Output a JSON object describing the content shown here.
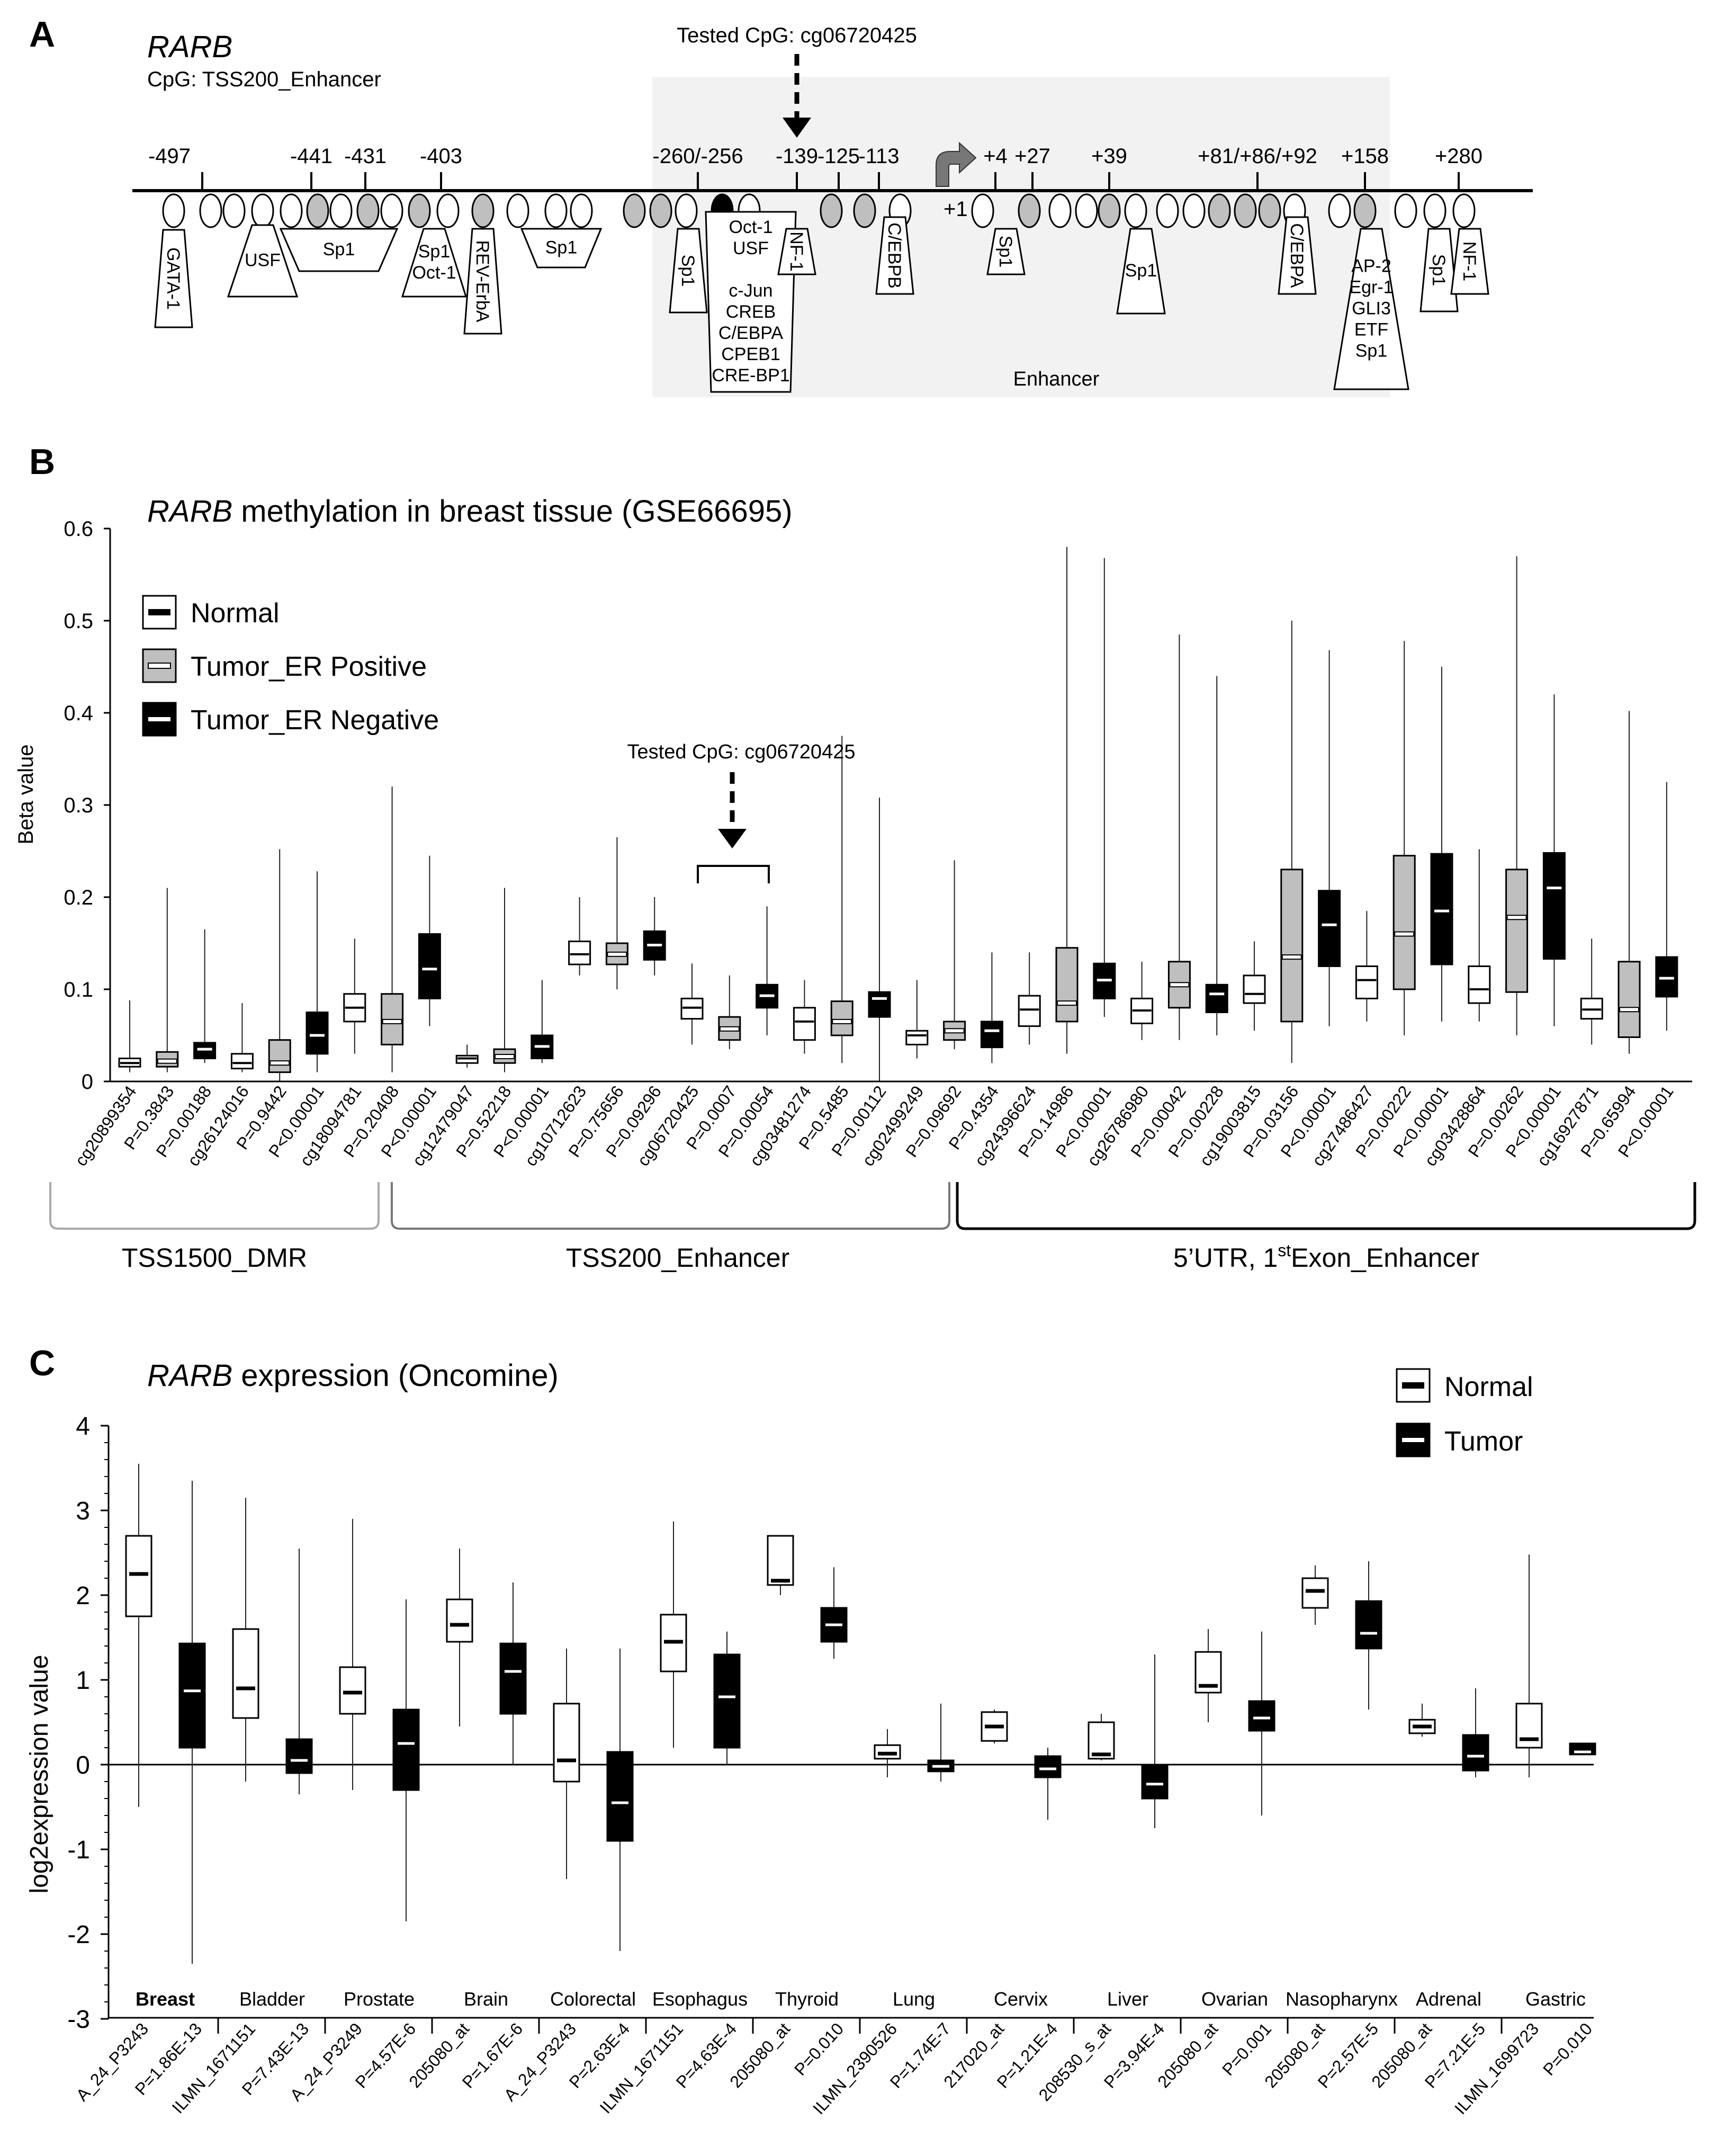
{
  "colors": {
    "normal": "#ffffff",
    "er_pos": "#bfbfbf",
    "er_neg": "#000000",
    "enhancer_bg": "#f2f2f2",
    "site_gray": "#bfbfbf",
    "site_black": "#000000"
  },
  "panel_a": {
    "letter": "A",
    "gene": "RARB",
    "cpg_label": "CpG: TSS200_Enhancer",
    "tested_label": "Tested CpG: cg06720425",
    "tss_label": "+1",
    "enhancer_label": "Enhancer",
    "positions": [
      "-497",
      "-441",
      "-431",
      "-403",
      "-260/-256",
      "-139",
      "-125",
      "-113",
      "+4",
      "+27",
      "+39",
      "+81/+86/+92",
      "+158",
      "+280"
    ],
    "sites": [
      "w",
      "w",
      "w",
      "w",
      "w",
      "g",
      "w",
      "g",
      "w",
      "g",
      "w",
      "g",
      "w",
      "w",
      "w",
      "g",
      "g",
      "w",
      "b",
      "w",
      "g",
      "g",
      "w",
      "w",
      "g",
      "w",
      "w",
      "g",
      "w",
      "w",
      "w",
      "g",
      "g",
      "g",
      "w",
      "w",
      "g",
      "w",
      "w",
      "w"
    ],
    "factors": [
      {
        "lines": [
          "GATA-1"
        ],
        "rot": true
      },
      {
        "lines": [
          "USF"
        ],
        "rot": false
      },
      {
        "lines": [
          "Sp1"
        ],
        "rot": false
      },
      {
        "lines": [
          "Sp1",
          "Oct-1"
        ],
        "rot": false
      },
      {
        "lines": [
          "REV-ErbA"
        ],
        "rot": true
      },
      {
        "lines": [
          "Sp1"
        ],
        "rot": false
      },
      {
        "lines": [
          "Sp1"
        ],
        "rot": true
      },
      {
        "lines": [
          "Oct-1",
          "USF",
          "",
          "c-Jun",
          "CREB",
          "C/EBPA",
          "CPEB1",
          "CRE-BP1"
        ],
        "rot": false
      },
      {
        "lines": [
          "NF-1"
        ],
        "rot": true
      },
      {
        "lines": [
          "C/EBPB"
        ],
        "rot": true
      },
      {
        "lines": [
          "Sp1"
        ],
        "rot": true
      },
      {
        "lines": [
          "Sp1"
        ],
        "rot": false
      },
      {
        "lines": [
          "C/EBPA"
        ],
        "rot": true
      },
      {
        "lines": [
          "AP-2",
          "Egr-1",
          "GLI3",
          "ETF",
          "Sp1"
        ],
        "rot": false
      },
      {
        "lines": [
          "Sp1"
        ],
        "rot": true
      },
      {
        "lines": [
          "NF-1"
        ],
        "rot": true
      }
    ]
  },
  "panel_b": {
    "letter": "B",
    "annotation": "Tested CpG: cg06720425",
    "legend": [
      "Normal",
      "Tumor_ER Positive",
      "Tumor_ER Negative"
    ],
    "region_labels": [
      "TSS1500_DMR",
      "TSS200_Enhancer",
      "5’UTR, 1"
    ],
    "region_sup": "st",
    "region_suffix": "Exon_Enhancer",
    "chart_data": {
      "type": "box",
      "title": "RARB methylation in breast tissue (GSE66695)",
      "title_gene": "RARB",
      "title_rest": " methylation in breast tissue (GSE66695)",
      "ylabel": "Beta value",
      "ylim": [
        0,
        0.6
      ],
      "yticks": [
        "0",
        "0.1",
        "0.2",
        "0.3",
        "0.4",
        "0.5",
        "0.6"
      ],
      "series": [
        "Normal",
        "Tumor_ER Positive",
        "Tumor_ER Negative"
      ],
      "categories": [
        "cg20899354",
        "P=0.3843",
        "P=0.00188",
        "cg26124016",
        "P=0.9442",
        "P<0.00001",
        "cg18094781",
        "P=0.20408",
        "P<0.00001",
        "cg12479047",
        "P=0.52218",
        "P<0.00001",
        "cg10712623",
        "P=0.75656",
        "P=0.09296",
        "cg06720425",
        "P=0.0007",
        "P=0.00054",
        "cg03481274",
        "P=0.5485",
        "P=0.00112",
        "cg02499249",
        "P=0.09692",
        "P=0.4354",
        "cg24396624",
        "P=0.14986",
        "P<0.00001",
        "cg26786980",
        "P=0.00042",
        "P=0.00228",
        "cg19003815",
        "P=0.03156",
        "P<0.00001",
        "cg27486427",
        "P=0.00222",
        "P<0.00001",
        "cg03428864",
        "P=0.00262",
        "P<0.00001",
        "cg16927871",
        "P=0.65994",
        "P<0.00001"
      ],
      "boxes": [
        {
          "s": 0,
          "min": 0.01,
          "q1": 0.016,
          "med": 0.02,
          "q3": 0.025,
          "max": 0.088
        },
        {
          "s": 1,
          "min": 0.01,
          "q1": 0.016,
          "med": 0.022,
          "q3": 0.032,
          "max": 0.21
        },
        {
          "s": 2,
          "min": 0.02,
          "q1": 0.025,
          "med": 0.035,
          "q3": 0.042,
          "max": 0.165
        },
        {
          "s": 0,
          "min": 0.01,
          "q1": 0.014,
          "med": 0.02,
          "q3": 0.03,
          "max": 0.085
        },
        {
          "s": 1,
          "min": 0.0,
          "q1": 0.01,
          "med": 0.02,
          "q3": 0.045,
          "max": 0.252
        },
        {
          "s": 2,
          "min": 0.01,
          "q1": 0.03,
          "med": 0.05,
          "q3": 0.075,
          "max": 0.228
        },
        {
          "s": 0,
          "min": 0.03,
          "q1": 0.065,
          "med": 0.08,
          "q3": 0.095,
          "max": 0.155
        },
        {
          "s": 1,
          "min": 0.01,
          "q1": 0.04,
          "med": 0.065,
          "q3": 0.095,
          "max": 0.32
        },
        {
          "s": 2,
          "min": 0.06,
          "q1": 0.09,
          "med": 0.122,
          "q3": 0.16,
          "max": 0.245
        },
        {
          "s": 0,
          "min": 0.015,
          "q1": 0.02,
          "med": 0.025,
          "q3": 0.028,
          "max": 0.04
        },
        {
          "s": 1,
          "min": 0.01,
          "q1": 0.02,
          "med": 0.027,
          "q3": 0.035,
          "max": 0.21
        },
        {
          "s": 2,
          "min": 0.02,
          "q1": 0.025,
          "med": 0.038,
          "q3": 0.05,
          "max": 0.11
        },
        {
          "s": 0,
          "min": 0.115,
          "q1": 0.127,
          "med": 0.138,
          "q3": 0.152,
          "max": 0.2
        },
        {
          "s": 1,
          "min": 0.1,
          "q1": 0.127,
          "med": 0.138,
          "q3": 0.15,
          "max": 0.265
        },
        {
          "s": 2,
          "min": 0.115,
          "q1": 0.132,
          "med": 0.148,
          "q3": 0.163,
          "max": 0.2
        },
        {
          "s": 0,
          "min": 0.04,
          "q1": 0.068,
          "med": 0.08,
          "q3": 0.09,
          "max": 0.128
        },
        {
          "s": 1,
          "min": 0.035,
          "q1": 0.045,
          "med": 0.057,
          "q3": 0.07,
          "max": 0.115
        },
        {
          "s": 2,
          "min": 0.05,
          "q1": 0.08,
          "med": 0.093,
          "q3": 0.105,
          "max": 0.19
        },
        {
          "s": 0,
          "min": 0.03,
          "q1": 0.045,
          "med": 0.065,
          "q3": 0.08,
          "max": 0.11
        },
        {
          "s": 1,
          "min": 0.02,
          "q1": 0.05,
          "med": 0.065,
          "q3": 0.087,
          "max": 0.375
        },
        {
          "s": 2,
          "min": 0.0,
          "q1": 0.07,
          "med": 0.09,
          "q3": 0.097,
          "max": 0.308
        },
        {
          "s": 0,
          "min": 0.025,
          "q1": 0.04,
          "med": 0.05,
          "q3": 0.055,
          "max": 0.11
        },
        {
          "s": 1,
          "min": 0.035,
          "q1": 0.045,
          "med": 0.055,
          "q3": 0.065,
          "max": 0.24
        },
        {
          "s": 2,
          "min": 0.02,
          "q1": 0.037,
          "med": 0.055,
          "q3": 0.065,
          "max": 0.14
        },
        {
          "s": 0,
          "min": 0.04,
          "q1": 0.06,
          "med": 0.078,
          "q3": 0.093,
          "max": 0.14
        },
        {
          "s": 1,
          "min": 0.03,
          "q1": 0.065,
          "med": 0.085,
          "q3": 0.145,
          "max": 0.58
        },
        {
          "s": 2,
          "min": 0.07,
          "q1": 0.09,
          "med": 0.11,
          "q3": 0.128,
          "max": 0.568
        },
        {
          "s": 0,
          "min": 0.045,
          "q1": 0.063,
          "med": 0.077,
          "q3": 0.09,
          "max": 0.13
        },
        {
          "s": 1,
          "min": 0.045,
          "q1": 0.08,
          "med": 0.105,
          "q3": 0.13,
          "max": 0.485
        },
        {
          "s": 2,
          "min": 0.05,
          "q1": 0.075,
          "med": 0.095,
          "q3": 0.105,
          "max": 0.44
        },
        {
          "s": 0,
          "min": 0.055,
          "q1": 0.085,
          "med": 0.095,
          "q3": 0.115,
          "max": 0.152
        },
        {
          "s": 1,
          "min": 0.02,
          "q1": 0.065,
          "med": 0.135,
          "q3": 0.23,
          "max": 0.5
        },
        {
          "s": 2,
          "min": 0.06,
          "q1": 0.125,
          "med": 0.17,
          "q3": 0.207,
          "max": 0.468
        },
        {
          "s": 0,
          "min": 0.065,
          "q1": 0.09,
          "med": 0.11,
          "q3": 0.125,
          "max": 0.185
        },
        {
          "s": 1,
          "min": 0.05,
          "q1": 0.1,
          "med": 0.16,
          "q3": 0.245,
          "max": 0.478
        },
        {
          "s": 2,
          "min": 0.065,
          "q1": 0.127,
          "med": 0.185,
          "q3": 0.247,
          "max": 0.45
        },
        {
          "s": 0,
          "min": 0.065,
          "q1": 0.085,
          "med": 0.1,
          "q3": 0.125,
          "max": 0.252
        },
        {
          "s": 1,
          "min": 0.05,
          "q1": 0.097,
          "med": 0.178,
          "q3": 0.23,
          "max": 0.57
        },
        {
          "s": 2,
          "min": 0.06,
          "q1": 0.133,
          "med": 0.21,
          "q3": 0.248,
          "max": 0.42
        },
        {
          "s": 0,
          "min": 0.04,
          "q1": 0.068,
          "med": 0.078,
          "q3": 0.09,
          "max": 0.155
        },
        {
          "s": 1,
          "min": 0.03,
          "q1": 0.048,
          "med": 0.078,
          "q3": 0.13,
          "max": 0.402
        },
        {
          "s": 2,
          "min": 0.055,
          "q1": 0.092,
          "med": 0.112,
          "q3": 0.135,
          "max": 0.325
        }
      ]
    }
  },
  "panel_c": {
    "letter": "C",
    "legend": [
      "Normal",
      "Tumor"
    ],
    "chart_data": {
      "type": "box",
      "title": "RARB expression (Oncomine)",
      "title_gene": "RARB",
      "title_rest": " expression (Oncomine)",
      "ylabel": "log2expression value",
      "ylim": [
        -3,
        4
      ],
      "yticks": [
        "-3",
        "-2",
        "-1",
        "0",
        "1",
        "2",
        "3",
        "4"
      ],
      "series": [
        "Normal",
        "Tumor"
      ],
      "tissues": [
        "Breast",
        "Bladder",
        "Prostate",
        "Brain",
        "Colorectal",
        "Esophagus",
        "Thyroid",
        "Lung",
        "Cervix",
        "Liver",
        "Ovarian",
        "Nasopharynx",
        "Adrenal",
        "Gastric"
      ],
      "probes": [
        "A_24_P3243",
        "ILMN_1671151",
        "A_24_P3249",
        "205080_at",
        "A_24_P3243",
        "ILMN_1671151",
        "205080_at",
        "ILMN_2390526",
        "217020_at",
        "208530_s_at",
        "205080_at",
        "205080_at",
        "205080_at",
        "ILMN_1699723"
      ],
      "pvalues": [
        "P=1.86E-13",
        "P=7.43E-13",
        "P=4.57E-6",
        "P=1.67E-6",
        "P=2.63E-4",
        "P=4.63E-4",
        "P=0.010",
        "P=1.74E-7",
        "P=1.21E-4",
        "P=3.94E-4",
        "P=0.001",
        "P=2.57E-5",
        "P=7.21E-5",
        "P=0.010"
      ],
      "boxes": [
        {
          "s": 0,
          "min": -0.5,
          "q1": 1.75,
          "med": 2.25,
          "q3": 2.7,
          "max": 3.55
        },
        {
          "s": 1,
          "min": -2.35,
          "q1": 0.2,
          "med": 0.87,
          "q3": 1.43,
          "max": 3.35
        },
        {
          "s": 0,
          "min": -0.2,
          "q1": 0.55,
          "med": 0.9,
          "q3": 1.6,
          "max": 3.15
        },
        {
          "s": 1,
          "min": -0.35,
          "q1": -0.1,
          "med": 0.05,
          "q3": 0.3,
          "max": 2.55
        },
        {
          "s": 0,
          "min": -0.3,
          "q1": 0.6,
          "med": 0.85,
          "q3": 1.15,
          "max": 2.9
        },
        {
          "s": 1,
          "min": -1.85,
          "q1": -0.3,
          "med": 0.25,
          "q3": 0.65,
          "max": 1.95
        },
        {
          "s": 0,
          "min": 0.45,
          "q1": 1.45,
          "med": 1.65,
          "q3": 1.95,
          "max": 2.55
        },
        {
          "s": 1,
          "min": 0.0,
          "q1": 0.6,
          "med": 1.1,
          "q3": 1.43,
          "max": 2.15
        },
        {
          "s": 0,
          "min": -1.35,
          "q1": -0.2,
          "med": 0.05,
          "q3": 0.72,
          "max": 1.37
        },
        {
          "s": 1,
          "min": -2.2,
          "q1": -0.9,
          "med": -0.45,
          "q3": 0.15,
          "max": 1.37
        },
        {
          "s": 0,
          "min": 0.2,
          "q1": 1.1,
          "med": 1.45,
          "q3": 1.77,
          "max": 2.87
        },
        {
          "s": 1,
          "min": 0.0,
          "q1": 0.2,
          "med": 0.8,
          "q3": 1.3,
          "max": 1.57
        },
        {
          "s": 0,
          "min": 2.0,
          "q1": 2.12,
          "med": 2.17,
          "q3": 2.7,
          "max": 2.7
        },
        {
          "s": 1,
          "min": 1.25,
          "q1": 1.45,
          "med": 1.65,
          "q3": 1.85,
          "max": 2.33
        },
        {
          "s": 0,
          "min": -0.15,
          "q1": 0.07,
          "med": 0.13,
          "q3": 0.23,
          "max": 0.42
        },
        {
          "s": 1,
          "min": -0.2,
          "q1": -0.08,
          "med": -0.02,
          "q3": 0.05,
          "max": 0.72
        },
        {
          "s": 0,
          "min": 0.25,
          "q1": 0.28,
          "med": 0.45,
          "q3": 0.62,
          "max": 0.65
        },
        {
          "s": 1,
          "min": -0.65,
          "q1": -0.15,
          "med": -0.05,
          "q3": 0.1,
          "max": 0.2
        },
        {
          "s": 0,
          "min": 0.05,
          "q1": 0.07,
          "med": 0.12,
          "q3": 0.5,
          "max": 0.6
        },
        {
          "s": 1,
          "min": -0.75,
          "q1": -0.4,
          "med": -0.23,
          "q3": 0.0,
          "max": 1.3
        },
        {
          "s": 0,
          "min": 0.5,
          "q1": 0.85,
          "med": 0.93,
          "q3": 1.33,
          "max": 1.6
        },
        {
          "s": 1,
          "min": -0.6,
          "q1": 0.4,
          "med": 0.55,
          "q3": 0.75,
          "max": 1.57
        },
        {
          "s": 0,
          "min": 1.65,
          "q1": 1.85,
          "med": 2.05,
          "q3": 2.2,
          "max": 2.35
        },
        {
          "s": 1,
          "min": 0.65,
          "q1": 1.37,
          "med": 1.55,
          "q3": 1.93,
          "max": 2.4
        },
        {
          "s": 0,
          "min": 0.33,
          "q1": 0.37,
          "med": 0.45,
          "q3": 0.53,
          "max": 0.72
        },
        {
          "s": 1,
          "min": -0.15,
          "q1": -0.07,
          "med": 0.1,
          "q3": 0.35,
          "max": 0.9
        },
        {
          "s": 0,
          "min": -0.15,
          "q1": 0.2,
          "med": 0.3,
          "q3": 0.72,
          "max": 2.48
        },
        {
          "s": 1,
          "min": 0.12,
          "q1": 0.12,
          "med": 0.15,
          "q3": 0.25,
          "max": 0.25
        }
      ]
    }
  }
}
